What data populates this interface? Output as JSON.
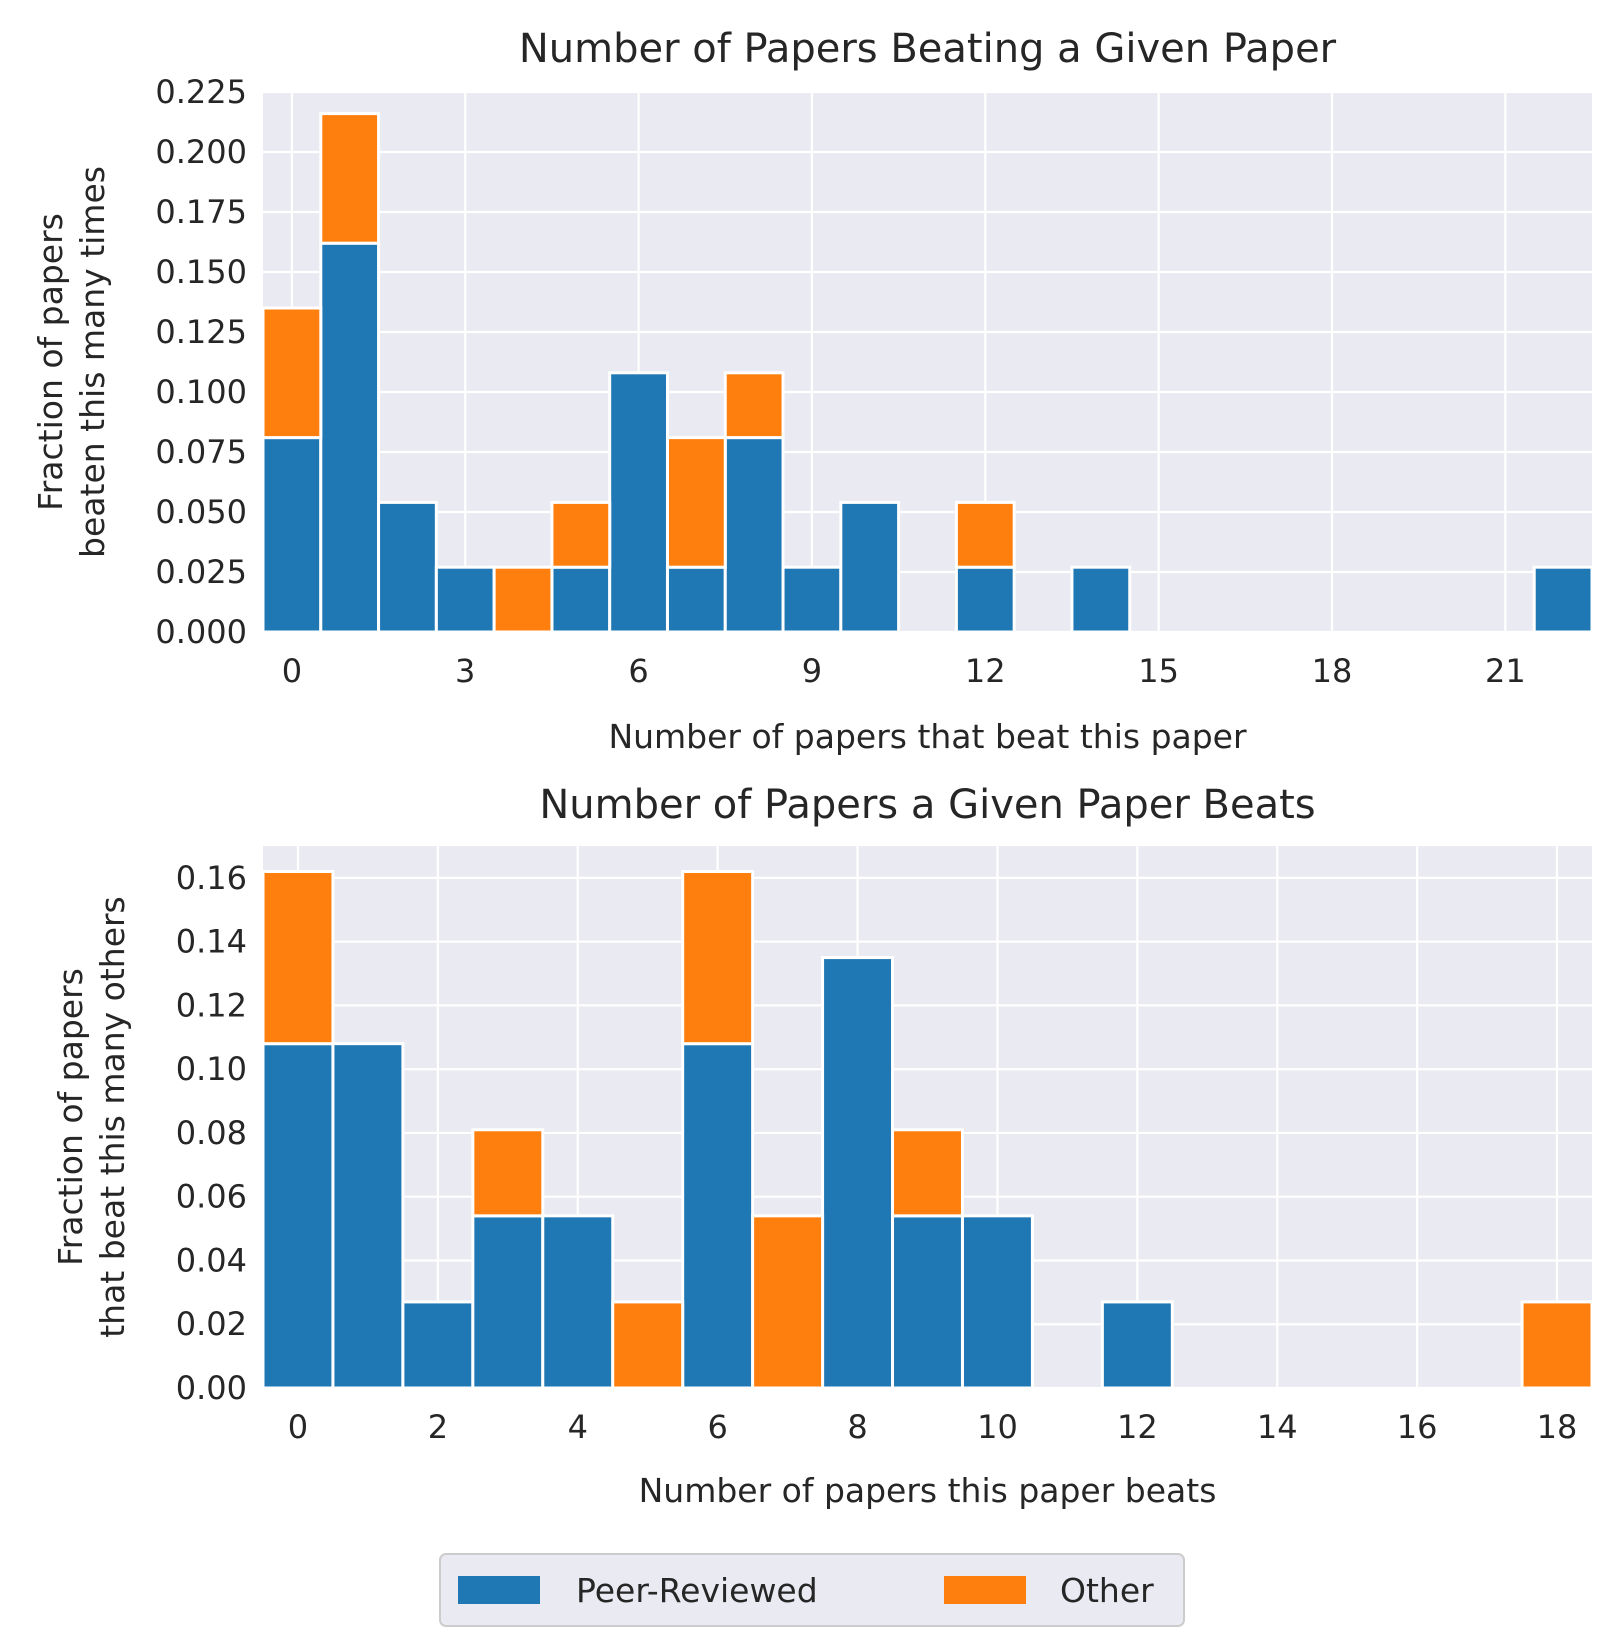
{
  "colors": {
    "peer_reviewed": "#1f77b4",
    "other": "#ff7f0e",
    "plot_background": "#eaeaf2",
    "grid": "#ffffff"
  },
  "legend": {
    "items": [
      {
        "label": "Peer-Reviewed",
        "color": "#1f77b4"
      },
      {
        "label": "Other",
        "color": "#ff7f0e"
      }
    ],
    "placement": "bottom-center"
  },
  "chart_data": [
    {
      "type": "bar",
      "stacked": true,
      "title": "Number of Papers Beating a Given Paper",
      "xlabel": "Number of papers that beat this paper",
      "ylabel_lines": [
        "Fraction of papers",
        "beaten this many times"
      ],
      "xlim": [
        -0.5,
        22.5
      ],
      "ylim": [
        0,
        0.225
      ],
      "xticks": [
        0,
        3,
        6,
        9,
        12,
        15,
        18,
        21
      ],
      "yticks": [
        "0.000",
        "0.025",
        "0.050",
        "0.075",
        "0.100",
        "0.125",
        "0.150",
        "0.175",
        "0.200",
        "0.225"
      ],
      "grid": true,
      "x": [
        0,
        1,
        2,
        3,
        4,
        5,
        6,
        7,
        8,
        9,
        10,
        11,
        12,
        13,
        14,
        15,
        16,
        17,
        18,
        19,
        20,
        21,
        22
      ],
      "series": [
        {
          "name": "Peer-Reviewed",
          "values": [
            0.081,
            0.162,
            0.054,
            0.027,
            0,
            0.027,
            0.108,
            0.027,
            0.081,
            0.027,
            0.054,
            0,
            0.027,
            0,
            0.027,
            0,
            0,
            0,
            0,
            0,
            0,
            0,
            0.027
          ]
        },
        {
          "name": "Other",
          "values": [
            0.054,
            0.054,
            0,
            0,
            0.027,
            0.027,
            0,
            0.054,
            0.027,
            0,
            0,
            0,
            0.027,
            0,
            0,
            0,
            0,
            0,
            0,
            0,
            0,
            0,
            0
          ]
        }
      ]
    },
    {
      "type": "bar",
      "stacked": true,
      "title": "Number of Papers a Given Paper Beats",
      "xlabel": "Number of papers this paper beats",
      "ylabel_lines": [
        "Fraction of papers",
        "that beat this many others"
      ],
      "xlim": [
        -0.5,
        18.5
      ],
      "ylim": [
        0,
        0.17
      ],
      "xticks": [
        0,
        2,
        4,
        6,
        8,
        10,
        12,
        14,
        16,
        18
      ],
      "yticks": [
        "0.00",
        "0.02",
        "0.04",
        "0.06",
        "0.08",
        "0.10",
        "0.12",
        "0.14",
        "0.16"
      ],
      "grid": true,
      "x": [
        0,
        1,
        2,
        3,
        4,
        5,
        6,
        7,
        8,
        9,
        10,
        11,
        12,
        13,
        14,
        15,
        16,
        17,
        18
      ],
      "series": [
        {
          "name": "Peer-Reviewed",
          "values": [
            0.108,
            0.108,
            0.027,
            0.054,
            0.054,
            0,
            0.108,
            0,
            0.135,
            0.054,
            0.054,
            0,
            0.027,
            0,
            0,
            0,
            0,
            0,
            0
          ]
        },
        {
          "name": "Other",
          "values": [
            0.054,
            0,
            0,
            0.027,
            0,
            0.027,
            0.054,
            0.054,
            0,
            0.027,
            0,
            0,
            0,
            0,
            0,
            0,
            0,
            0,
            0.027
          ]
        }
      ]
    }
  ]
}
